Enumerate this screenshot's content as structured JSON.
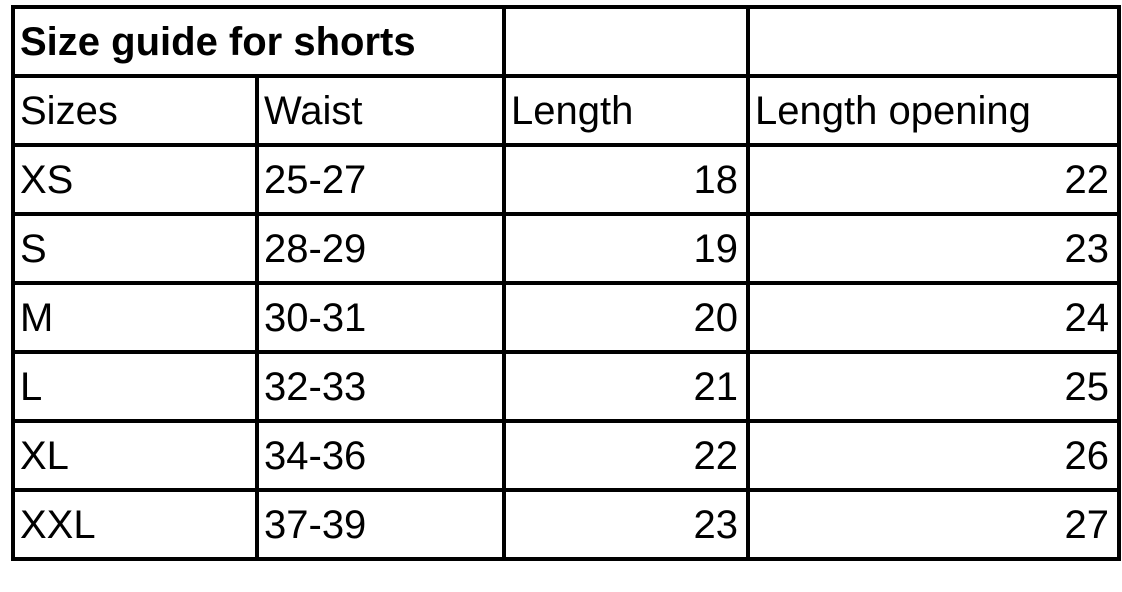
{
  "title": "Size guide for shorts",
  "headers": [
    "Sizes",
    "Waist",
    "Length",
    "Length opening"
  ],
  "rows": [
    [
      "XS",
      "25-27",
      "18",
      "22"
    ],
    [
      "S",
      "28-29",
      "19",
      "23"
    ],
    [
      "M",
      "30-31",
      "20",
      "24"
    ],
    [
      "L",
      "32-33",
      "21",
      "25"
    ],
    [
      "XL",
      "34-36",
      "22",
      "26"
    ],
    [
      "XXL",
      "37-39",
      "23",
      "27"
    ]
  ]
}
